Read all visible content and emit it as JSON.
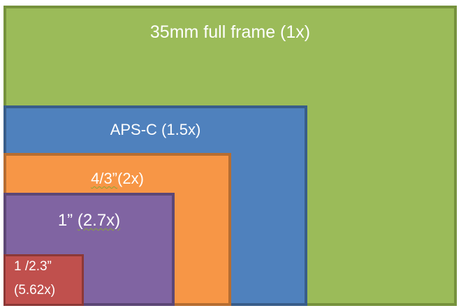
{
  "sensors": [
    {
      "key": "full_frame",
      "label": "35mm full frame (1x)",
      "color": "#9bbb59",
      "border": "#76923c"
    },
    {
      "key": "aps_c",
      "label": "APS-C (1.5x)",
      "color": "#4f81bd",
      "border": "#385d8a"
    },
    {
      "key": "four_thirds",
      "label_main": "4/3”",
      "label_crop": "(2x)",
      "color": "#f79646",
      "border": "#b66d31"
    },
    {
      "key": "one_inch",
      "label_main": "1”",
      "label_crop": "(2.7x)",
      "color": "#8064a2",
      "border": "#5c4776"
    },
    {
      "key": "small",
      "label_line1": "1 /2.3”",
      "label_line2": "(5.62x)",
      "color": "#c0504d",
      "border": "#8c3836"
    }
  ]
}
